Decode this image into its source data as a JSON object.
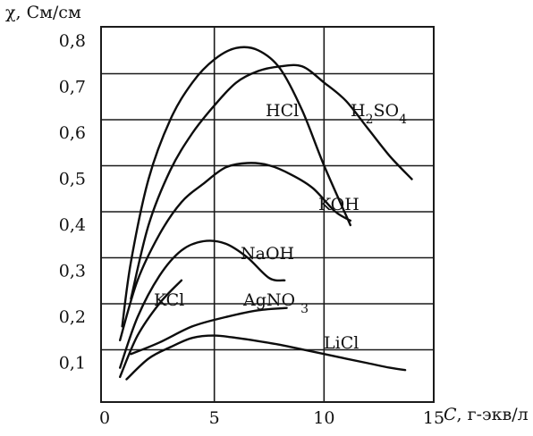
{
  "chart_data": {
    "type": "line",
    "ylabel": "χ, См/см",
    "xlabel_symbol": "C",
    "xlabel_unit": ", г-экв/л",
    "xlim": [
      0,
      15
    ],
    "ylim": [
      0,
      0.8
    ],
    "grid": true,
    "x_ticks": [
      0,
      5,
      10,
      15
    ],
    "x_tick_labels": [
      "0",
      "5",
      "10",
      "15"
    ],
    "y_ticks": [
      0.1,
      0.2,
      0.3,
      0.4,
      0.5,
      0.6,
      0.7,
      0.8
    ],
    "y_tick_labels": [
      "0,1",
      "0,2",
      "0,3",
      "0,4",
      "0,5",
      "0,6",
      "0,7",
      "0,8"
    ],
    "series": [
      {
        "key": "hcl",
        "label": "HCl",
        "label_at": [
          3.2,
          0.6
        ],
        "points": [
          [
            0.8,
            0.18
          ],
          [
            1.2,
            0.32
          ],
          [
            2,
            0.5
          ],
          [
            3,
            0.63
          ],
          [
            4,
            0.71
          ],
          [
            5,
            0.76
          ],
          [
            6,
            0.785
          ],
          [
            7,
            0.78
          ],
          [
            8,
            0.74
          ],
          [
            9,
            0.65
          ],
          [
            10,
            0.53
          ],
          [
            11.2,
            0.4
          ]
        ]
      },
      {
        "key": "h2so4",
        "label_parts": [
          {
            "text": "H",
            "sub": false
          },
          {
            "text": "2",
            "sub": true
          },
          {
            "text": "SO",
            "sub": false
          },
          {
            "text": "4",
            "sub": true
          }
        ],
        "label_at": [
          4.7,
          0.6
        ],
        "points": [
          [
            1.2,
            0.24
          ],
          [
            2,
            0.4
          ],
          [
            3,
            0.52
          ],
          [
            4,
            0.6
          ],
          [
            5,
            0.66
          ],
          [
            6,
            0.71
          ],
          [
            7,
            0.735
          ],
          [
            8,
            0.745
          ],
          [
            9,
            0.745
          ],
          [
            10,
            0.71
          ],
          [
            11,
            0.67
          ],
          [
            12,
            0.61
          ],
          [
            13,
            0.55
          ],
          [
            14,
            0.5
          ]
        ]
      },
      {
        "key": "koh",
        "label": "KOH",
        "label_at": [
          5.1,
          0.4
        ],
        "points": [
          [
            0.7,
            0.15
          ],
          [
            1.5,
            0.28
          ],
          [
            2.5,
            0.38
          ],
          [
            3.5,
            0.45
          ],
          [
            4.5,
            0.49
          ],
          [
            5.5,
            0.525
          ],
          [
            6.5,
            0.535
          ],
          [
            7.5,
            0.53
          ],
          [
            8.5,
            0.51
          ],
          [
            9.5,
            0.48
          ],
          [
            10.5,
            0.43
          ],
          [
            11.2,
            0.41
          ]
        ]
      },
      {
        "key": "naoh",
        "label": "NaOH",
        "label_at": [
          2.6,
          0.3
        ],
        "points": [
          [
            0.7,
            0.09
          ],
          [
            1.5,
            0.2
          ],
          [
            2.5,
            0.29
          ],
          [
            3.5,
            0.345
          ],
          [
            4.5,
            0.365
          ],
          [
            5.5,
            0.36
          ],
          [
            6.5,
            0.33
          ],
          [
            7.5,
            0.285
          ],
          [
            8.2,
            0.28
          ]
        ]
      },
      {
        "key": "kcl",
        "label": "KCl",
        "label_at": [
          0.7,
          0.2
        ],
        "points": [
          [
            0.7,
            0.07
          ],
          [
            1.5,
            0.16
          ],
          [
            2.5,
            0.23
          ],
          [
            3.5,
            0.28
          ]
        ]
      },
      {
        "key": "agno3",
        "label_parts": [
          {
            "text": "AgNO ",
            "sub": false
          },
          {
            "text": "3",
            "sub": true
          }
        ],
        "label_at": [
          2.6,
          0.2
        ],
        "points": [
          [
            1.2,
            0.12
          ],
          [
            2.5,
            0.145
          ],
          [
            4,
            0.18
          ],
          [
            5.5,
            0.2
          ],
          [
            7,
            0.215
          ],
          [
            8.3,
            0.22
          ]
        ]
      },
      {
        "key": "licl",
        "label": "LiCl",
        "label_at": [
          3.9,
          0.1
        ],
        "points": [
          [
            1,
            0.065
          ],
          [
            2,
            0.11
          ],
          [
            3,
            0.135
          ],
          [
            4,
            0.155
          ],
          [
            5,
            0.16
          ],
          [
            6,
            0.155
          ],
          [
            7,
            0.148
          ],
          [
            8,
            0.14
          ],
          [
            9,
            0.13
          ],
          [
            10,
            0.12
          ],
          [
            11,
            0.11
          ],
          [
            12,
            0.1
          ],
          [
            13,
            0.09
          ],
          [
            13.7,
            0.085
          ]
        ]
      }
    ]
  }
}
